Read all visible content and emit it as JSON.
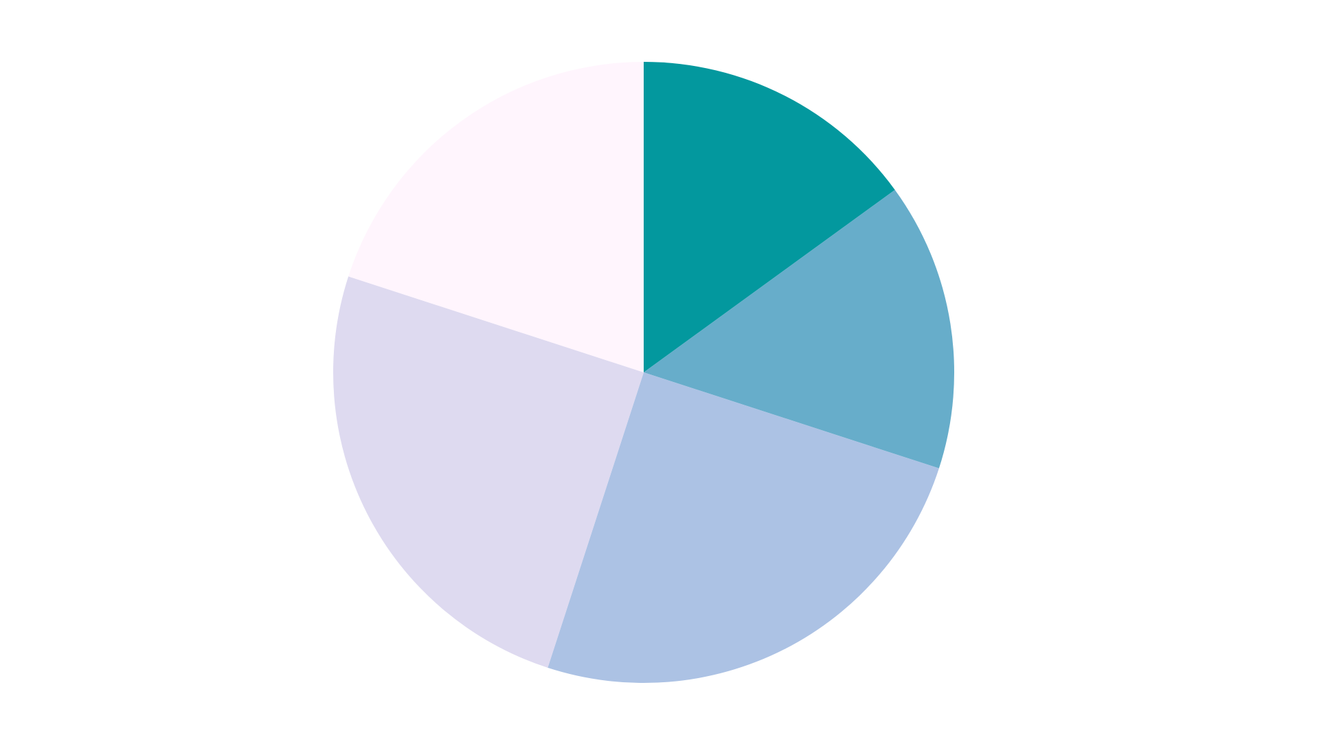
{
  "chart_data": {
    "type": "pie",
    "title": "",
    "start_angle": "top",
    "direction": "clockwise",
    "values": [
      0.15,
      0.15,
      0.25,
      0.25,
      0.2
    ],
    "colors": [
      "#03989e",
      "#67adca",
      "#acc2e4",
      "#dedaf0",
      "#fff5fd"
    ],
    "legend": "none",
    "data_labels": "none"
  }
}
